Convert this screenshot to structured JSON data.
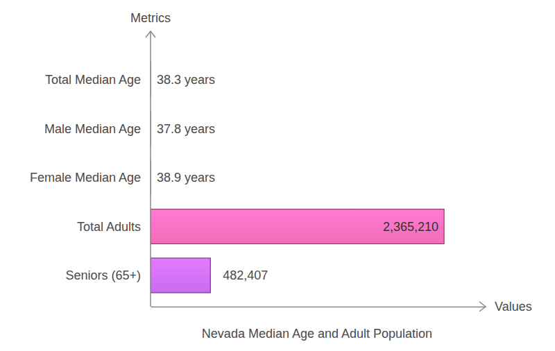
{
  "chart_data": {
    "type": "bar",
    "orientation": "horizontal",
    "title": "Nevada Median Age and Adult Population",
    "x_label": "Values",
    "y_label": "Metrics",
    "categories": [
      "Total Median Age",
      "Male Median Age",
      "Female Median Age",
      "Total Adults",
      "Seniors (65+)"
    ],
    "values": [
      38.3,
      37.8,
      38.9,
      2365210,
      482407
    ],
    "value_labels": [
      "38.3 years",
      "37.8 years",
      "38.9 years",
      "2,365,210",
      "482,407"
    ],
    "colors": [
      "#f26db9",
      "#f26db9",
      "#f26db9",
      "#f26db9",
      "#c86cf0"
    ],
    "xlim": [
      0,
      2700000
    ],
    "xticks": [],
    "data_labels": true,
    "tick_labels": "y",
    "grid": false
  }
}
